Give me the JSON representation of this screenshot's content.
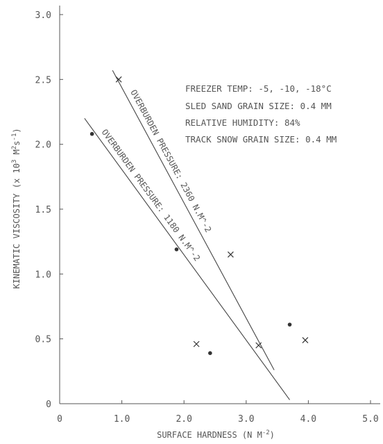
{
  "chart_data": {
    "type": "scatter",
    "xlabel": "SURFACE HARDNESS (N M^-2)",
    "ylabel": "KINEMATIC VISCOSITY (x 10^3 M^2 s^-1)",
    "xlim": [
      0,
      5
    ],
    "ylim": [
      0,
      3
    ],
    "x_ticks": [
      "0",
      "1.0",
      "2.0",
      "3.0",
      "4.0",
      "5.0"
    ],
    "y_ticks": [
      "0",
      "0.5",
      "1.0",
      "1.5",
      "2.0",
      "2.5",
      "3.0"
    ],
    "annotations": [
      "FREEZER TEMP:  -5, -10, -18°C",
      "SLED SAND GRAIN SIZE:  0.4 MM",
      "RELATIVE HUMIDITY:  84%",
      "TRACK SNOW GRAIN SIZE:  0.4 MM"
    ],
    "series": [
      {
        "name": "OVERBURDEN PRESSURE: 2360 N.M^-2",
        "marker": "cross",
        "points": [
          [
            0.95,
            2.5
          ],
          [
            2.75,
            1.15
          ],
          [
            2.2,
            0.46
          ],
          [
            3.2,
            0.45
          ],
          [
            3.95,
            0.49
          ]
        ],
        "fit_line": [
          [
            0.85,
            2.57
          ],
          [
            3.45,
            0.26
          ]
        ]
      },
      {
        "name": "OVERBURDEN PRESSURE: 1180 N.M^-2",
        "marker": "dot",
        "points": [
          [
            0.52,
            2.08
          ],
          [
            1.88,
            1.19
          ],
          [
            2.42,
            0.39
          ],
          [
            3.7,
            0.61
          ]
        ],
        "fit_line": [
          [
            0.4,
            2.2
          ],
          [
            3.7,
            0.03
          ]
        ]
      }
    ],
    "grid": false
  }
}
